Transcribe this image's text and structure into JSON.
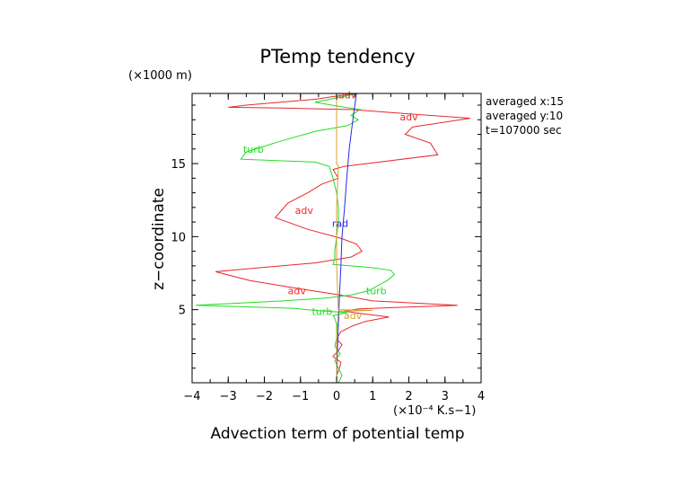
{
  "chart_data": {
    "type": "line",
    "title": "PTemp tendency",
    "xlabel": "Advection term of potential temp",
    "x_unit": "(×10⁻⁴ K.s−1)",
    "ylabel": "z−coordinate",
    "y_unit": "(×1000 m)",
    "xlim": [
      -4,
      4
    ],
    "ylim": [
      0,
      19.8
    ],
    "xticks": [
      "−4",
      "−3",
      "−2",
      "−1",
      "0",
      "1",
      "2",
      "3",
      "4"
    ],
    "yticks": [
      "5",
      "10",
      "15"
    ],
    "grid": false,
    "info": [
      "averaged  x:15",
      "averaged  y:10",
      "t=107000 sec"
    ],
    "series": [
      {
        "name": "adv",
        "color": "#e8282b",
        "points": [
          [
            0.0,
            0
          ],
          [
            0.0,
            0.5
          ],
          [
            0.08,
            1
          ],
          [
            0.12,
            1.4
          ],
          [
            -0.1,
            1.8
          ],
          [
            0.05,
            2.2
          ],
          [
            0.15,
            2.6
          ],
          [
            0.0,
            3.0
          ],
          [
            0.12,
            3.5
          ],
          [
            0.45,
            3.9
          ],
          [
            0.8,
            4.2
          ],
          [
            1.45,
            4.5
          ],
          [
            0.8,
            4.7
          ],
          [
            0.2,
            4.9
          ],
          [
            0.6,
            5.05
          ],
          [
            1.6,
            5.15
          ],
          [
            3.35,
            5.3
          ],
          [
            1.0,
            5.6
          ],
          [
            0.1,
            6.0
          ],
          [
            -1.2,
            6.5
          ],
          [
            -2.4,
            7.0
          ],
          [
            -3.35,
            7.6
          ],
          [
            -2.0,
            7.9
          ],
          [
            -0.6,
            8.2
          ],
          [
            0.4,
            8.6
          ],
          [
            0.7,
            9.0
          ],
          [
            0.55,
            9.5
          ],
          [
            0.1,
            9.9
          ],
          [
            -0.8,
            10.5
          ],
          [
            -1.7,
            11.3
          ],
          [
            -1.35,
            12.3
          ],
          [
            -0.8,
            13.0
          ],
          [
            -0.4,
            13.6
          ],
          [
            0.05,
            14.0
          ],
          [
            -0.1,
            14.6
          ],
          [
            0.2,
            14.8
          ],
          [
            2.8,
            15.6
          ],
          [
            2.6,
            16.4
          ],
          [
            1.9,
            17.0
          ],
          [
            2.1,
            17.5
          ],
          [
            3.7,
            18.1
          ],
          [
            2.0,
            18.4
          ],
          [
            0.4,
            18.7
          ],
          [
            -1.5,
            18.8
          ],
          [
            -3.0,
            18.85
          ],
          [
            -2.5,
            19.0
          ],
          [
            -0.6,
            19.4
          ],
          [
            0.5,
            19.8
          ]
        ]
      },
      {
        "name": "turb",
        "color": "#22dd22",
        "points": [
          [
            0.05,
            0
          ],
          [
            0.15,
            0.5
          ],
          [
            0.05,
            1
          ],
          [
            -0.05,
            1.5
          ],
          [
            0.1,
            2.0
          ],
          [
            -0.05,
            2.5
          ],
          [
            0.0,
            3.0
          ],
          [
            0.0,
            3.5
          ],
          [
            0.0,
            4.0
          ],
          [
            -0.05,
            4.4
          ],
          [
            -0.1,
            4.6
          ],
          [
            0.3,
            4.8
          ],
          [
            -0.6,
            4.95
          ],
          [
            -1.2,
            5.1
          ],
          [
            -3.9,
            5.3
          ],
          [
            -1.5,
            5.6
          ],
          [
            -0.3,
            5.8
          ],
          [
            0.4,
            6.0
          ],
          [
            0.9,
            6.3
          ],
          [
            1.1,
            6.6
          ],
          [
            1.4,
            7.0
          ],
          [
            1.6,
            7.4
          ],
          [
            1.5,
            7.7
          ],
          [
            0.9,
            7.9
          ],
          [
            -0.1,
            8.1
          ],
          [
            -0.05,
            8.5
          ],
          [
            -0.05,
            9.0
          ],
          [
            0.0,
            10.0
          ],
          [
            0.05,
            11.0
          ],
          [
            0.05,
            12.0
          ],
          [
            0.0,
            13.0
          ],
          [
            -0.1,
            14.0
          ],
          [
            -0.2,
            14.8
          ],
          [
            -0.6,
            15.1
          ],
          [
            -2.65,
            15.3
          ],
          [
            -2.5,
            15.8
          ],
          [
            -1.6,
            16.5
          ],
          [
            -0.6,
            17.2
          ],
          [
            0.3,
            17.6
          ],
          [
            0.6,
            18.0
          ],
          [
            0.4,
            18.3
          ],
          [
            0.65,
            18.7
          ],
          [
            0.1,
            18.9
          ],
          [
            -0.6,
            19.2
          ],
          [
            0.6,
            19.8
          ]
        ]
      },
      {
        "name": "rad",
        "color": "#2a2ae8",
        "points": [
          [
            0.0,
            0
          ],
          [
            0.02,
            2
          ],
          [
            0.05,
            4
          ],
          [
            0.08,
            6
          ],
          [
            0.12,
            8
          ],
          [
            0.15,
            10
          ],
          [
            0.22,
            12
          ],
          [
            0.28,
            14
          ],
          [
            0.35,
            16
          ],
          [
            0.45,
            18
          ],
          [
            0.55,
            19.8
          ]
        ]
      },
      {
        "name": "",
        "color": "#d8a030",
        "points": [
          [
            0.0,
            0
          ],
          [
            0.0,
            3
          ],
          [
            0.05,
            4.9
          ],
          [
            1.0,
            4.95
          ],
          [
            0.05,
            5.0
          ],
          [
            0.0,
            8
          ],
          [
            0.0,
            12
          ],
          [
            0.05,
            14.8
          ],
          [
            0.0,
            15
          ],
          [
            0.0,
            19.5
          ],
          [
            0.1,
            19.8
          ]
        ]
      }
    ],
    "labels": [
      {
        "text": "adv",
        "series": "adv",
        "x": 0.3,
        "y": 19.7
      },
      {
        "text": "adv",
        "series": "adv",
        "x": 2.0,
        "y": 18.2
      },
      {
        "text": "adv",
        "series": "adv",
        "x": -0.9,
        "y": 11.8
      },
      {
        "text": "adv",
        "series": "adv",
        "x": -1.1,
        "y": 6.3
      },
      {
        "text": "adv",
        "series": "",
        "x": 0.45,
        "y": 4.6
      },
      {
        "text": "turb",
        "series": "turb",
        "x": -2.3,
        "y": 16.0
      },
      {
        "text": "turb",
        "series": "turb",
        "x": 1.1,
        "y": 6.3
      },
      {
        "text": "turb",
        "series": "turb",
        "x": -0.4,
        "y": 4.9
      },
      {
        "text": "rad",
        "series": "rad",
        "x": 0.1,
        "y": 10.9
      }
    ]
  }
}
